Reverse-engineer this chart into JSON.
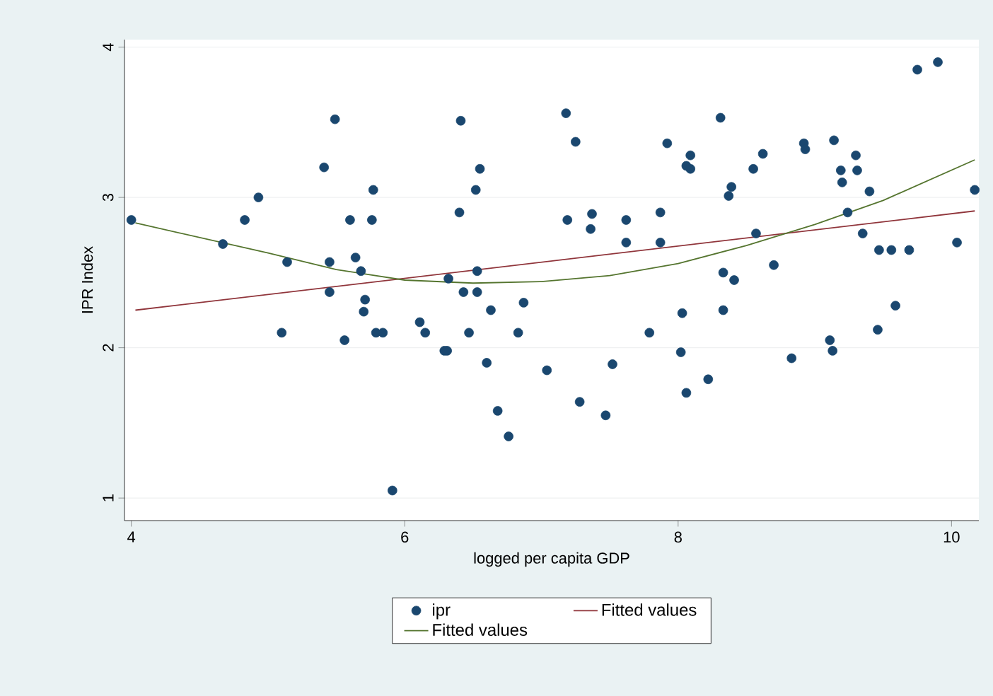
{
  "chart_data": {
    "type": "scatter",
    "xlabel": "logged per capita GDP",
    "ylabel": "IPR Index",
    "xlim": [
      3.95,
      10.2
    ],
    "ylim": [
      0.85,
      4.05
    ],
    "xticks": [
      4,
      6,
      8,
      10
    ],
    "yticks": [
      1,
      2,
      3,
      4
    ],
    "grid": "y",
    "legend": "bottom",
    "marker": "circle",
    "series": [
      {
        "name": "ipr",
        "type": "scatter",
        "color": "#1a476f",
        "x": [
          4.0,
          4.67,
          4.83,
          4.93,
          5.14,
          5.1,
          5.41,
          5.45,
          5.49,
          5.45,
          5.56,
          5.6,
          5.64,
          5.68,
          5.7,
          5.71,
          5.76,
          5.77,
          5.79,
          5.84,
          5.91,
          6.11,
          6.15,
          6.29,
          6.31,
          6.32,
          6.41,
          6.4,
          6.52,
          6.55,
          6.53,
          6.43,
          6.53,
          6.47,
          6.63,
          6.6,
          6.68,
          6.76,
          6.83,
          6.87,
          7.04,
          7.18,
          7.25,
          7.19,
          7.28,
          7.37,
          7.36,
          7.47,
          7.52,
          7.62,
          7.62,
          7.79,
          7.87,
          7.87,
          7.92,
          8.03,
          8.02,
          8.06,
          8.06,
          8.09,
          8.09,
          8.22,
          8.31,
          8.39,
          8.37,
          8.33,
          8.41,
          8.33,
          8.57,
          8.55,
          8.62,
          8.7,
          8.83,
          8.92,
          8.93,
          9.11,
          9.13,
          9.14,
          9.19,
          9.2,
          9.24,
          9.3,
          9.31,
          9.35,
          9.4,
          9.46,
          9.47,
          9.56,
          9.59,
          9.69,
          9.75,
          9.9,
          10.04,
          10.17
        ],
        "values": [
          2.85,
          2.69,
          2.85,
          3.0,
          2.57,
          2.1,
          3.2,
          2.57,
          3.52,
          2.37,
          2.05,
          2.85,
          2.6,
          2.51,
          2.24,
          2.32,
          2.85,
          3.05,
          2.1,
          2.1,
          1.05,
          2.17,
          2.1,
          1.98,
          1.98,
          2.46,
          3.51,
          2.9,
          3.05,
          3.19,
          2.51,
          2.37,
          2.37,
          2.1,
          2.25,
          1.9,
          1.58,
          1.41,
          2.1,
          2.3,
          1.85,
          3.56,
          3.37,
          2.85,
          1.64,
          2.89,
          2.79,
          1.55,
          1.89,
          2.85,
          2.7,
          2.1,
          2.9,
          2.7,
          3.36,
          2.23,
          1.97,
          1.7,
          3.21,
          3.19,
          3.28,
          1.79,
          3.53,
          3.07,
          3.01,
          2.5,
          2.45,
          2.25,
          2.76,
          3.19,
          3.29,
          2.55,
          1.93,
          3.36,
          3.32,
          2.05,
          1.98,
          3.38,
          3.18,
          3.1,
          2.9,
          3.28,
          3.18,
          2.76,
          3.04,
          2.12,
          2.65,
          2.65,
          2.28,
          2.65,
          3.85,
          3.9,
          2.7,
          3.05
        ]
      },
      {
        "name": "Fitted values",
        "type": "line",
        "marker": "none",
        "color": "#90353b",
        "x": [
          4.03,
          10.17
        ],
        "values": [
          2.25,
          2.91
        ]
      },
      {
        "name": "Fitted values",
        "type": "line",
        "marker": "none",
        "color": "#55752f",
        "x": [
          4.03,
          5.0,
          5.5,
          6.0,
          6.5,
          7.0,
          7.5,
          8.0,
          8.5,
          9.0,
          9.5,
          10.17
        ],
        "values": [
          2.83,
          2.63,
          2.52,
          2.45,
          2.43,
          2.44,
          2.48,
          2.56,
          2.68,
          2.82,
          2.98,
          3.25
        ]
      }
    ]
  }
}
